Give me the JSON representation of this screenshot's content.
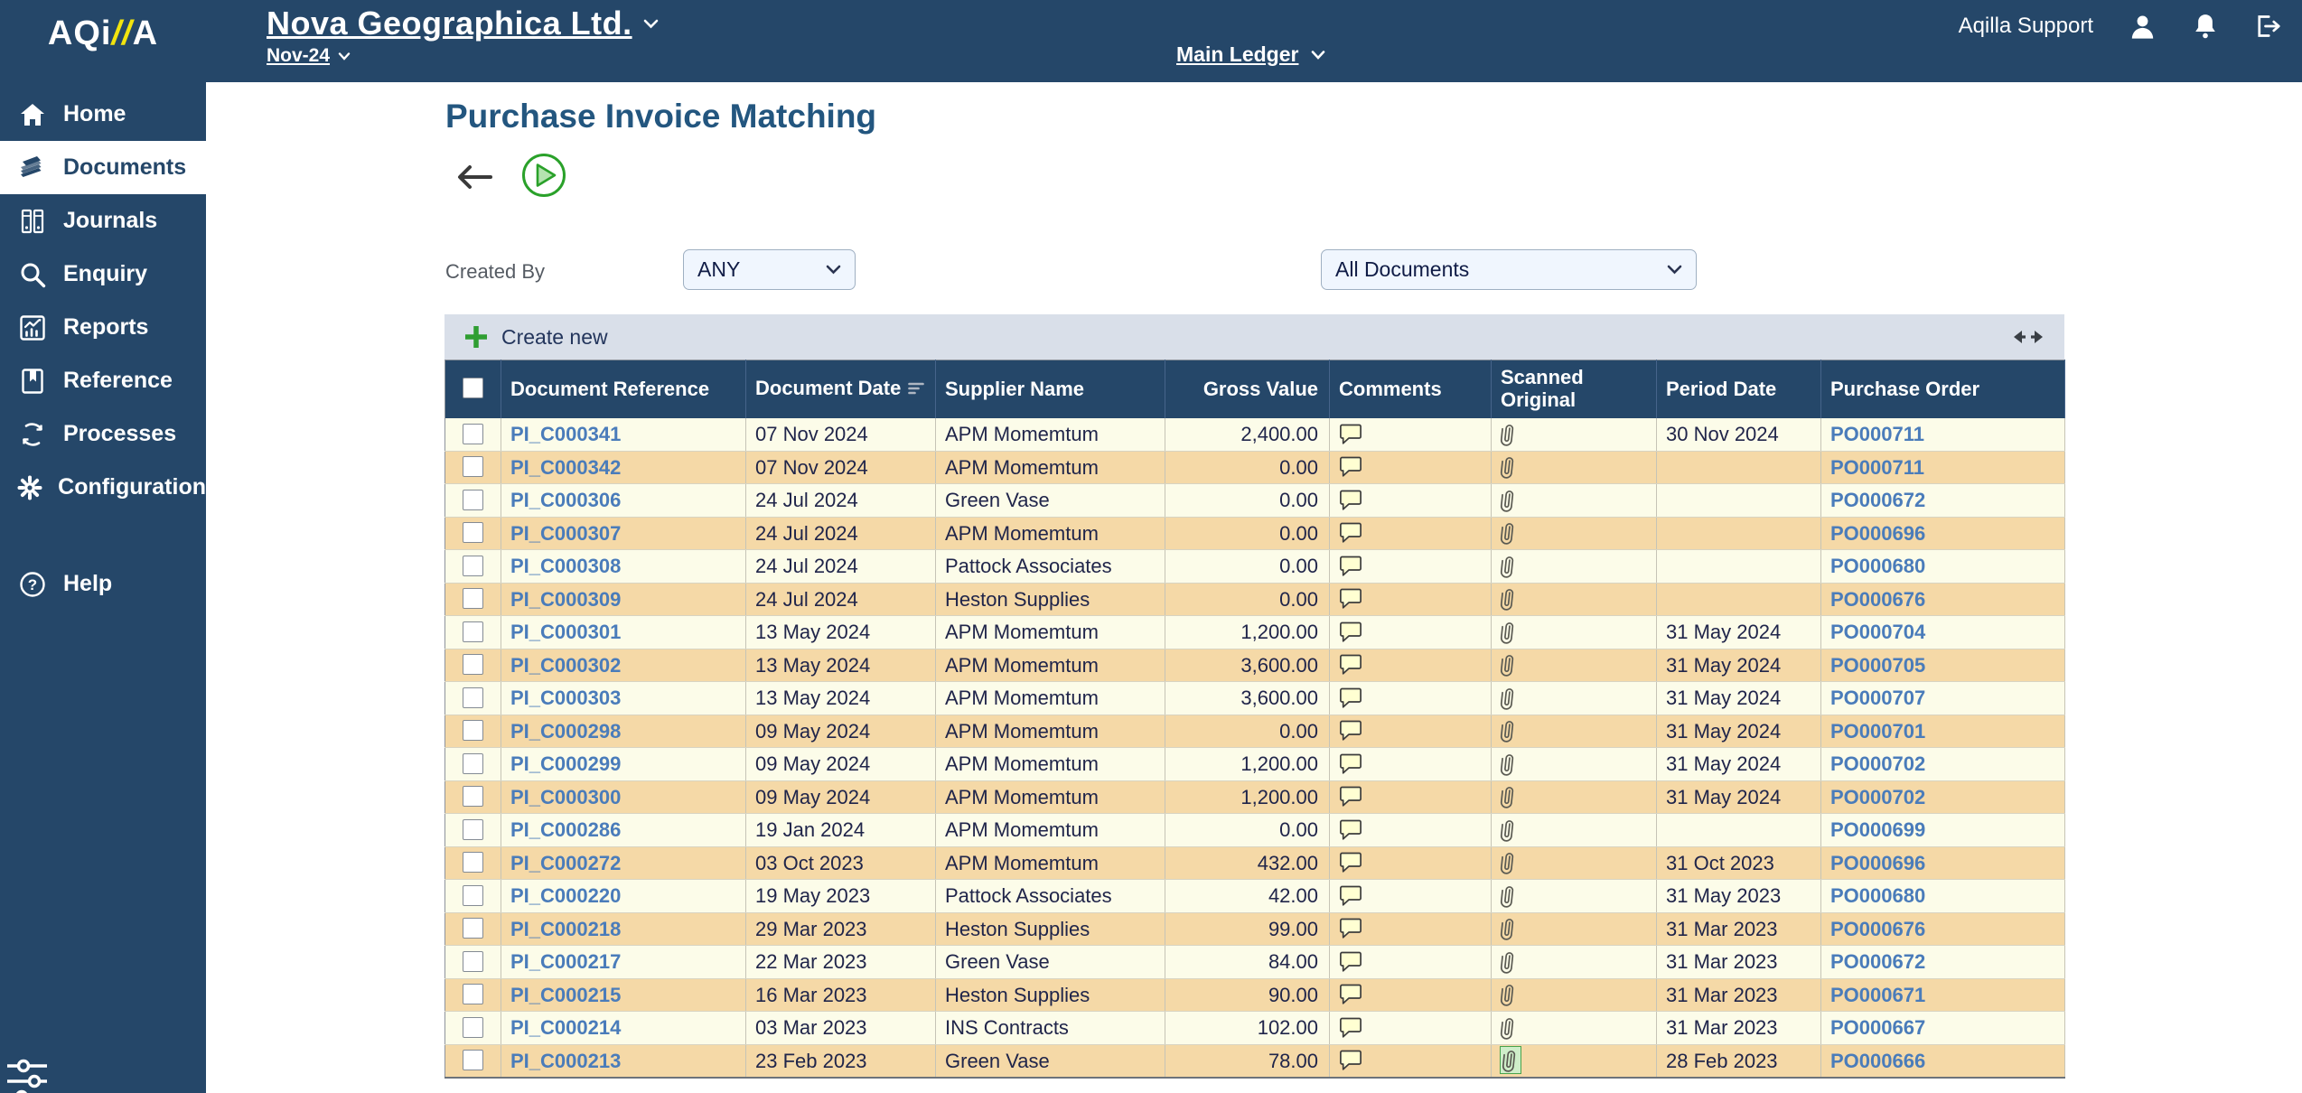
{
  "colors": {
    "navy": "#254769",
    "title_blue": "#23567f",
    "link_blue": "#4a7cba",
    "row_cream": "#fcfce9",
    "row_tan": "#f5d9a7",
    "toolbar_gray": "#d9dfe9",
    "accent_green": "#2f9e32",
    "logo_yellow": "#f2e40e"
  },
  "brand": {
    "logo_start": "AQi",
    "logo_slashes": "//",
    "logo_end": "A"
  },
  "topbar": {
    "company": "Nova Geographica Ltd.",
    "period": "Nov-24",
    "ledger": "Main Ledger",
    "user": "Aqilla Support"
  },
  "sidebar": {
    "items": [
      {
        "label": "Home"
      },
      {
        "label": "Documents",
        "active": true
      },
      {
        "label": "Journals"
      },
      {
        "label": "Enquiry"
      },
      {
        "label": "Reports"
      },
      {
        "label": "Reference"
      },
      {
        "label": "Processes"
      },
      {
        "label": "Configuration"
      },
      {
        "label": "Help"
      }
    ]
  },
  "page": {
    "title": "Purchase Invoice Matching"
  },
  "filters": {
    "created_by_label": "Created By",
    "created_by_value": "ANY",
    "document_filter_value": "All Documents"
  },
  "toolbar": {
    "create_new_label": "Create new"
  },
  "table": {
    "columns": [
      "Document Reference",
      "Document Date",
      "Supplier Name",
      "Gross Value",
      "Comments",
      "Scanned Original",
      "Period Date",
      "Purchase Order"
    ],
    "rows": [
      {
        "ref": "PI_C000341",
        "doc_date": "07 Nov 2024",
        "supplier": "APM Momemtum",
        "gross": "2,400.00",
        "period": "30 Nov 2024",
        "po": "PO000711",
        "scanned_highlight": false
      },
      {
        "ref": "PI_C000342",
        "doc_date": "07 Nov 2024",
        "supplier": "APM Momemtum",
        "gross": "0.00",
        "period": "",
        "po": "PO000711",
        "scanned_highlight": false
      },
      {
        "ref": "PI_C000306",
        "doc_date": "24 Jul 2024",
        "supplier": "Green Vase",
        "gross": "0.00",
        "period": "",
        "po": "PO000672",
        "scanned_highlight": false
      },
      {
        "ref": "PI_C000307",
        "doc_date": "24 Jul 2024",
        "supplier": "APM Momemtum",
        "gross": "0.00",
        "period": "",
        "po": "PO000696",
        "scanned_highlight": false
      },
      {
        "ref": "PI_C000308",
        "doc_date": "24 Jul 2024",
        "supplier": "Pattock Associates",
        "gross": "0.00",
        "period": "",
        "po": "PO000680",
        "scanned_highlight": false
      },
      {
        "ref": "PI_C000309",
        "doc_date": "24 Jul 2024",
        "supplier": "Heston Supplies",
        "gross": "0.00",
        "period": "",
        "po": "PO000676",
        "scanned_highlight": false
      },
      {
        "ref": "PI_C000301",
        "doc_date": "13 May 2024",
        "supplier": "APM Momemtum",
        "gross": "1,200.00",
        "period": "31 May 2024",
        "po": "PO000704",
        "scanned_highlight": false
      },
      {
        "ref": "PI_C000302",
        "doc_date": "13 May 2024",
        "supplier": "APM Momemtum",
        "gross": "3,600.00",
        "period": "31 May 2024",
        "po": "PO000705",
        "scanned_highlight": false
      },
      {
        "ref": "PI_C000303",
        "doc_date": "13 May 2024",
        "supplier": "APM Momemtum",
        "gross": "3,600.00",
        "period": "31 May 2024",
        "po": "PO000707",
        "scanned_highlight": false
      },
      {
        "ref": "PI_C000298",
        "doc_date": "09 May 2024",
        "supplier": "APM Momemtum",
        "gross": "0.00",
        "period": "31 May 2024",
        "po": "PO000701",
        "scanned_highlight": false
      },
      {
        "ref": "PI_C000299",
        "doc_date": "09 May 2024",
        "supplier": "APM Momemtum",
        "gross": "1,200.00",
        "period": "31 May 2024",
        "po": "PO000702",
        "scanned_highlight": false
      },
      {
        "ref": "PI_C000300",
        "doc_date": "09 May 2024",
        "supplier": "APM Momemtum",
        "gross": "1,200.00",
        "period": "31 May 2024",
        "po": "PO000702",
        "scanned_highlight": false
      },
      {
        "ref": "PI_C000286",
        "doc_date": "19 Jan 2024",
        "supplier": "APM Momemtum",
        "gross": "0.00",
        "period": "",
        "po": "PO000699",
        "scanned_highlight": false
      },
      {
        "ref": "PI_C000272",
        "doc_date": "03 Oct 2023",
        "supplier": "APM Momemtum",
        "gross": "432.00",
        "period": "31 Oct 2023",
        "po": "PO000696",
        "scanned_highlight": false
      },
      {
        "ref": "PI_C000220",
        "doc_date": "19 May 2023",
        "supplier": "Pattock Associates",
        "gross": "42.00",
        "period": "31 May 2023",
        "po": "PO000680",
        "scanned_highlight": false
      },
      {
        "ref": "PI_C000218",
        "doc_date": "29 Mar 2023",
        "supplier": "Heston Supplies",
        "gross": "99.00",
        "period": "31 Mar 2023",
        "po": "PO000676",
        "scanned_highlight": false
      },
      {
        "ref": "PI_C000217",
        "doc_date": "22 Mar 2023",
        "supplier": "Green Vase",
        "gross": "84.00",
        "period": "31 Mar 2023",
        "po": "PO000672",
        "scanned_highlight": false
      },
      {
        "ref": "PI_C000215",
        "doc_date": "16 Mar 2023",
        "supplier": "Heston Supplies",
        "gross": "90.00",
        "period": "31 Mar 2023",
        "po": "PO000671",
        "scanned_highlight": false
      },
      {
        "ref": "PI_C000214",
        "doc_date": "03 Mar 2023",
        "supplier": "INS Contracts",
        "gross": "102.00",
        "period": "31 Mar 2023",
        "po": "PO000667",
        "scanned_highlight": false
      },
      {
        "ref": "PI_C000213",
        "doc_date": "23 Feb 2023",
        "supplier": "Green Vase",
        "gross": "78.00",
        "period": "28 Feb 2023",
        "po": "PO000666",
        "scanned_highlight": true
      }
    ]
  }
}
